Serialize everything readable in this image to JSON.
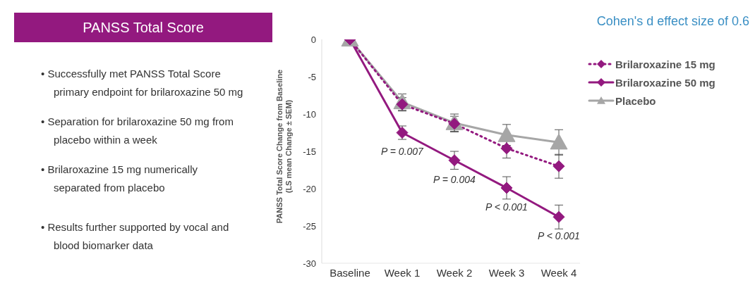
{
  "chart_data": {
    "type": "line",
    "title": "PANSS Total Score",
    "subtitle": "Cohen's d effect size of 0.6",
    "ylabel": "PANSS Total Score Change from Baseline\n(LS mean Change ± SEM)",
    "categories": [
      "Baseline",
      "Week 1",
      "Week 2",
      "Week 3",
      "Week 4"
    ],
    "series": [
      {
        "name": "Brilaroxazine 15 mg",
        "color": "#93197f",
        "marker": "diamond",
        "line_style": "dotted",
        "values": [
          0,
          -8.7,
          -11.3,
          -14.6,
          -17.0
        ],
        "errors": [
          null,
          0.9,
          1.0,
          1.3,
          1.6
        ]
      },
      {
        "name": "Brilaroxazine 50 mg",
        "color": "#93197f",
        "marker": "diamond",
        "line_style": "solid",
        "values": [
          0,
          -12.5,
          -16.2,
          -19.9,
          -23.8
        ],
        "errors": [
          null,
          0.9,
          1.2,
          1.5,
          1.6
        ]
      },
      {
        "name": "Placebo",
        "color": "#a6a6a6",
        "marker": "triangle",
        "line_style": "solid",
        "values": [
          0,
          -8.4,
          -11.2,
          -12.8,
          -13.8
        ],
        "errors": [
          null,
          1.1,
          1.2,
          1.4,
          1.7
        ]
      }
    ],
    "ylim": [
      -30,
      0
    ],
    "yticks": [
      0,
      -5,
      -10,
      -15,
      -20,
      -25,
      -30
    ],
    "grid": false,
    "legend": "top right",
    "annotations": [
      "• Successfully met PANSS Total Score primary endpoint for brilaroxazine 50 mg",
      "• Separation for brilaroxazine 50 mg from placebo within a week",
      "• Brilaroxazine 15 mg numerically separated from placebo",
      "• Results further supported by vocal and blood biomarker data",
      {
        "text": "P = 0.007",
        "x": "Week 1",
        "y": -12.5
      },
      {
        "text": "P = 0.004",
        "x": "Week 2",
        "y": -16.2
      },
      {
        "text": "P < 0.001",
        "x": "Week 3",
        "y": -19.9
      },
      {
        "text": "P < 0.001",
        "x": "Week 4",
        "y": -23.8
      }
    ]
  }
}
